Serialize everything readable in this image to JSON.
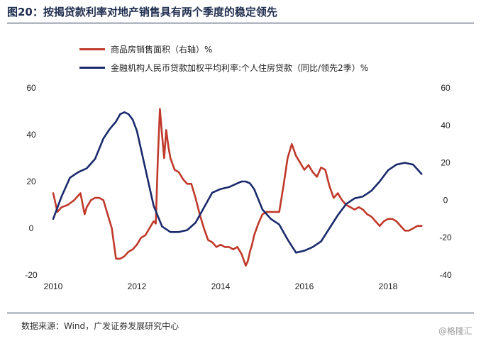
{
  "title": "图20：按揭贷款利率对地产销售具有两个季度的稳定领先",
  "source": "数据来源：Wind，广发证券发展研究中心",
  "watermark": "@格隆汇",
  "colors": {
    "series_red": "#c0392b",
    "series_blue": "#1a2a6c",
    "title": "#1f2d4f"
  },
  "chart_data": {
    "type": "line",
    "title": "图20：按揭贷款利率对地产销售具有两个季度的稳定领先",
    "xlabel": "",
    "ylabel": "",
    "x_ticks": [
      "2010",
      "2012",
      "2014",
      "2016",
      "2018"
    ],
    "xlim": [
      2010,
      2019
    ],
    "y_left_ticks": [
      "60",
      "40",
      "20",
      "0",
      "-20"
    ],
    "y_right_ticks": [
      "60",
      "40",
      "20",
      "0",
      "-20",
      "-40"
    ],
    "ylim_left": [
      -20,
      60
    ],
    "ylim_right": [
      -40,
      60
    ],
    "grid": false,
    "legend": "top-left",
    "series": [
      {
        "name": "商品房销售面积（右轴）%",
        "axis": "left",
        "color": "#c0392b",
        "x": [
          2010.0,
          2010.1,
          2010.2,
          2010.35,
          2010.5,
          2010.65,
          2010.75,
          2010.8,
          2010.9,
          2011.0,
          2011.1,
          2011.2,
          2011.3,
          2011.4,
          2011.5,
          2011.6,
          2011.7,
          2011.8,
          2011.9,
          2012.0,
          2012.1,
          2012.2,
          2012.3,
          2012.4,
          2012.45,
          2012.5,
          2012.55,
          2012.6,
          2012.65,
          2012.7,
          2012.75,
          2012.8,
          2012.9,
          2013.0,
          2013.1,
          2013.2,
          2013.3,
          2013.4,
          2013.5,
          2013.6,
          2013.7,
          2013.8,
          2013.9,
          2014.0,
          2014.1,
          2014.2,
          2014.3,
          2014.4,
          2014.5,
          2014.6,
          2014.65,
          2014.7,
          2014.75,
          2014.8,
          2014.9,
          2015.0,
          2015.1,
          2015.2,
          2015.3,
          2015.4,
          2015.5,
          2015.6,
          2015.7,
          2015.8,
          2015.9,
          2016.0,
          2016.1,
          2016.2,
          2016.3,
          2016.4,
          2016.5,
          2016.6,
          2016.7,
          2016.8,
          2016.9,
          2017.0,
          2017.1,
          2017.2,
          2017.3,
          2017.4,
          2017.5,
          2017.6,
          2017.7,
          2017.8,
          2017.9,
          2018.0,
          2018.1,
          2018.2,
          2018.3,
          2018.4,
          2018.5,
          2018.6,
          2018.7,
          2018.8
        ],
        "y": [
          15,
          7,
          9,
          10,
          12,
          15,
          6,
          9,
          12,
          13,
          13,
          12,
          6,
          0,
          -13,
          -13,
          -12,
          -10,
          -9,
          -7,
          -4,
          -3,
          0,
          3,
          2,
          30,
          51,
          40,
          30,
          42,
          35,
          30,
          25,
          24,
          21,
          19,
          19,
          13,
          6,
          0,
          -5,
          -6,
          -8,
          -7,
          -8,
          -8,
          -9,
          -8,
          -11,
          -16,
          -14,
          -10,
          -7,
          -3,
          2,
          6,
          7,
          7,
          7,
          7,
          18,
          30,
          36,
          31,
          28,
          25,
          27,
          24,
          22,
          26,
          25,
          18,
          13,
          15,
          12,
          10,
          9,
          8,
          9,
          8,
          6,
          5,
          3,
          1,
          3,
          4,
          4,
          3,
          1,
          -1,
          -1,
          0,
          1,
          1
        ]
      },
      {
        "name": "金融机构人民币贷款加权平均利率:个人住房贷款（同比/领先2季）%",
        "axis": "right",
        "color": "#1a2a6c",
        "x": [
          2010.0,
          2010.2,
          2010.4,
          2010.6,
          2010.8,
          2011.0,
          2011.2,
          2011.35,
          2011.5,
          2011.6,
          2011.7,
          2011.8,
          2011.9,
          2012.0,
          2012.2,
          2012.4,
          2012.6,
          2012.8,
          2013.0,
          2013.2,
          2013.4,
          2013.6,
          2013.8,
          2014.0,
          2014.2,
          2014.4,
          2014.5,
          2014.6,
          2014.7,
          2014.8,
          2015.0,
          2015.2,
          2015.4,
          2015.6,
          2015.8,
          2016.0,
          2016.2,
          2016.4,
          2016.6,
          2016.8,
          2017.0,
          2017.2,
          2017.4,
          2017.6,
          2017.8,
          2018.0,
          2018.2,
          2018.4,
          2018.6,
          2018.8
        ],
        "y": [
          -10,
          2,
          12,
          15,
          17,
          22,
          33,
          38,
          42,
          46,
          47,
          46,
          43,
          37,
          17,
          -3,
          -14,
          -17,
          -17,
          -16,
          -12,
          -4,
          4,
          6,
          7,
          9,
          10,
          10,
          9,
          6,
          -5,
          -10,
          -13,
          -21,
          -28,
          -27,
          -25,
          -22,
          -15,
          -8,
          -2,
          1,
          2,
          5,
          10,
          16,
          19,
          20,
          19,
          14
        ]
      }
    ]
  }
}
